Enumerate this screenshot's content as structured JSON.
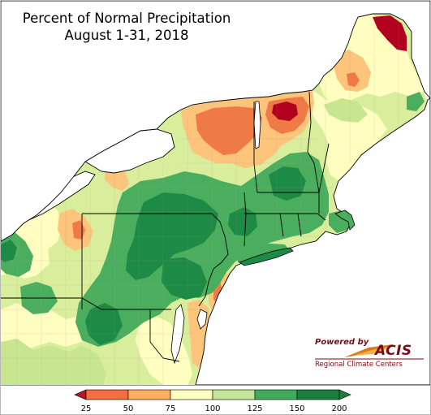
{
  "title": {
    "line1": "Percent of Normal Precipitation",
    "line2": "August 1-31, 2018"
  },
  "logo": {
    "powered_by": "Powered by",
    "name": "ACIS",
    "subtitle": "Regional Climate Centers"
  },
  "legend": {
    "ticks": [
      "25",
      "50",
      "75",
      "100",
      "125",
      "150",
      "200"
    ],
    "colors": [
      "#b2182b",
      "#f46d43",
      "#fdae61",
      "#ffffbf",
      "#c2e699",
      "#41ab5d",
      "#1a7f3c"
    ],
    "under_color": "#b2182b",
    "over_color": "#1a7f3c"
  },
  "palette": {
    "very_dry": "#b2001f",
    "dry": "#f07a45",
    "moderately_dry": "#fdc47b",
    "near_normal": "#fffec0",
    "wet": "#c8e68f",
    "very_wet": "#4bae5e",
    "extremely_wet": "#1d8a45",
    "water": "#ffffff"
  }
}
